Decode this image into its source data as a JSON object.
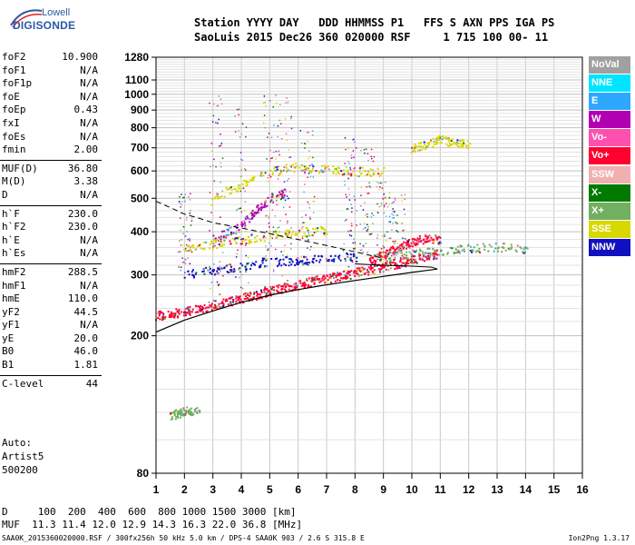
{
  "logo": {
    "line1": "Lowell",
    "line2": "DIGISONDE"
  },
  "header": {
    "line1": "Station YYYY DAY   DDD HHMMSS P1   FFS S AXN PPS IGA PS",
    "line2": "SaoLuis 2015 Dec26 360 020000 RSF     1 715 100 00- 11"
  },
  "params": [
    {
      "name": "foF2",
      "value": "10.900"
    },
    {
      "name": "foF1",
      "value": "N/A"
    },
    {
      "name": "foF1p",
      "value": "N/A"
    },
    {
      "name": "foE",
      "value": "N/A"
    },
    {
      "name": "foEp",
      "value": "0.43"
    },
    {
      "name": "fxI",
      "value": "N/A"
    },
    {
      "name": "foEs",
      "value": "N/A"
    },
    {
      "name": "fmin",
      "value": "2.00"
    },
    {
      "name": "MUF(D)",
      "value": "36.80"
    },
    {
      "name": "M(D)",
      "value": "3.38"
    },
    {
      "name": "D",
      "value": "N/A"
    },
    {
      "name": "h`F",
      "value": "230.0"
    },
    {
      "name": "h`F2",
      "value": "230.0"
    },
    {
      "name": "h`E",
      "value": "N/A"
    },
    {
      "name": "h`Es",
      "value": "N/A"
    },
    {
      "name": "hmF2",
      "value": "288.5"
    },
    {
      "name": "hmF1",
      "value": "N/A"
    },
    {
      "name": "hmE",
      "value": "110.0"
    },
    {
      "name": "yF2",
      "value": "44.5"
    },
    {
      "name": "yF1",
      "value": "N/A"
    },
    {
      "name": "yE",
      "value": "20.0"
    },
    {
      "name": "B0",
      "value": "46.0"
    },
    {
      "name": "B1",
      "value": "1.81"
    },
    {
      "name": "C-level",
      "value": "44"
    }
  ],
  "auto": {
    "line1": "Auto:",
    "line2": "Artist5",
    "line3": "500200"
  },
  "legend": [
    {
      "label": "NoVal",
      "color": "#a0a0a0"
    },
    {
      "label": "NNE",
      "color": "#00e5ff"
    },
    {
      "label": "E",
      "color": "#2ea8ff"
    },
    {
      "label": "W",
      "color": "#b000b0"
    },
    {
      "label": "Vo-",
      "color": "#ff50b0"
    },
    {
      "label": "Vo+",
      "color": "#ff0030"
    },
    {
      "label": "SSW",
      "color": "#f0b0b0"
    },
    {
      "label": "X-",
      "color": "#007a00"
    },
    {
      "label": "X+",
      "color": "#70b060"
    },
    {
      "label": "SSE",
      "color": "#d8d800"
    },
    {
      "label": "NNW",
      "color": "#1010c0"
    }
  ],
  "bottom": {
    "line1": "D     100  200  400  600  800 1000 1500 3000 [km]",
    "line2": "MUF  11.3 11.4 12.0 12.9 14.3 16.3 22.0 36.8 [MHz]"
  },
  "footer": {
    "left": "SAA0K_2015360020000.RSF / 300fx256h 50 kHz 5.0 km / DPS-4 SAA0K 903 / 2.6 S 315.8 E",
    "right": "Ion2Png 1.3.17"
  },
  "chart_data": {
    "type": "scatter",
    "title": "",
    "xlabel": "",
    "ylabel": "",
    "xlim": [
      1,
      16
    ],
    "ylim": [
      80,
      1280
    ],
    "y_scale": "log",
    "x_ticks": [
      "1",
      "2",
      "3",
      "4",
      "5",
      "6",
      "7",
      "8",
      "9",
      "10",
      "11",
      "12",
      "13",
      "14",
      "15",
      "16"
    ],
    "y_ticks": [
      {
        "value": 80,
        "label": "80"
      },
      {
        "value": 200,
        "label": "200"
      },
      {
        "value": 300,
        "label": "300"
      },
      {
        "value": 400,
        "label": "400"
      },
      {
        "value": 500,
        "label": "500"
      },
      {
        "value": 600,
        "label": "600"
      },
      {
        "value": 700,
        "label": "700"
      },
      {
        "value": 800,
        "label": "800"
      },
      {
        "value": 900,
        "label": "900"
      },
      {
        "value": 1000,
        "label": "1000"
      },
      {
        "value": 1100,
        "label": "1100"
      },
      {
        "value": 1280,
        "label": "1280"
      }
    ],
    "y_minor": [
      100,
      120,
      140,
      160,
      180,
      220,
      240,
      260,
      280,
      320,
      340,
      360,
      380,
      420,
      440,
      460,
      480,
      520,
      540,
      560,
      580,
      620,
      640,
      660,
      680,
      720,
      740,
      760,
      780,
      820,
      840,
      860,
      880,
      920,
      940,
      960,
      980,
      1020,
      1040,
      1060,
      1080,
      1120,
      1140,
      1160,
      1180,
      1200,
      1220,
      1240,
      1260
    ],
    "grid": true,
    "traces": [
      {
        "name": "Vo+",
        "points": [
          [
            1.0,
            230
          ],
          [
            1.5,
            232
          ],
          [
            2.0,
            236
          ],
          [
            2.5,
            240
          ],
          [
            3.0,
            246
          ],
          [
            3.5,
            252
          ],
          [
            4.0,
            258
          ],
          [
            4.5,
            264
          ],
          [
            5.0,
            270
          ],
          [
            5.5,
            276
          ],
          [
            6.0,
            282
          ],
          [
            6.5,
            288
          ],
          [
            7.0,
            294
          ],
          [
            7.5,
            300
          ],
          [
            8.0,
            306
          ],
          [
            8.5,
            312
          ],
          [
            9.0,
            318
          ],
          [
            9.5,
            325
          ],
          [
            10.0,
            332
          ],
          [
            10.5,
            340
          ],
          [
            10.9,
            348
          ]
        ]
      },
      {
        "name": "Vo+",
        "points": [
          [
            8.5,
            330
          ],
          [
            9.0,
            345
          ],
          [
            9.5,
            360
          ],
          [
            10.0,
            375
          ],
          [
            10.5,
            385
          ],
          [
            11.0,
            380
          ]
        ]
      },
      {
        "name": "X+",
        "points": [
          [
            9.0,
            340
          ],
          [
            10.0,
            345
          ],
          [
            11.0,
            355
          ],
          [
            12.0,
            360
          ],
          [
            13.0,
            362
          ],
          [
            14.0,
            358
          ]
        ]
      },
      {
        "name": "SSE",
        "points": [
          [
            10.0,
            700
          ],
          [
            10.5,
            720
          ],
          [
            11.0,
            740
          ],
          [
            11.5,
            725
          ],
          [
            12.0,
            720
          ]
        ]
      },
      {
        "name": "SSE",
        "points": [
          [
            3.0,
            500
          ],
          [
            4.0,
            550
          ],
          [
            5.0,
            600
          ],
          [
            6.0,
            620
          ],
          [
            7.0,
            610
          ],
          [
            8.0,
            600
          ],
          [
            9.0,
            600
          ]
        ]
      },
      {
        "name": "SSE",
        "points": [
          [
            2.0,
            355
          ],
          [
            3.0,
            370
          ],
          [
            4.0,
            380
          ],
          [
            5.0,
            390
          ],
          [
            6.0,
            400
          ],
          [
            7.0,
            405
          ]
        ]
      },
      {
        "name": "X+",
        "points": [
          [
            1.5,
            118
          ],
          [
            1.8,
            120
          ],
          [
            2.1,
            122
          ],
          [
            2.5,
            121
          ]
        ]
      },
      {
        "name": "NNW",
        "points": [
          [
            2.0,
            300
          ],
          [
            3.0,
            310
          ],
          [
            4.0,
            320
          ],
          [
            5.0,
            330
          ],
          [
            6.0,
            330
          ],
          [
            7.0,
            335
          ],
          [
            8.0,
            340
          ]
        ]
      },
      {
        "name": "W",
        "points": [
          [
            3.0,
            380
          ],
          [
            4.0,
            420
          ],
          [
            4.5,
            460
          ],
          [
            5.0,
            500
          ],
          [
            5.5,
            520
          ]
        ]
      }
    ],
    "fitted_profile": [
      [
        1.0,
        205
      ],
      [
        2.0,
        222
      ],
      [
        3.0,
        236
      ],
      [
        4.0,
        250
      ],
      [
        5.0,
        262
      ],
      [
        6.0,
        272
      ],
      [
        7.0,
        281
      ],
      [
        8.0,
        289
      ],
      [
        9.0,
        297
      ],
      [
        10.0,
        305
      ],
      [
        10.5,
        309
      ],
      [
        10.9,
        312
      ]
    ],
    "profile_tail": [
      [
        10.9,
        312
      ],
      [
        10.7,
        316
      ],
      [
        10.0,
        318
      ],
      [
        9.0,
        320
      ],
      [
        8.0,
        323
      ]
    ],
    "dashed_curve": [
      [
        1.0,
        490
      ],
      [
        1.5,
        470
      ],
      [
        2.0,
        450
      ],
      [
        2.5,
        438
      ],
      [
        3.0,
        425
      ],
      [
        4.0,
        410
      ],
      [
        5.0,
        395
      ],
      [
        6.0,
        380
      ],
      [
        7.0,
        365
      ],
      [
        8.0,
        350
      ],
      [
        9.0,
        335
      ]
    ]
  }
}
